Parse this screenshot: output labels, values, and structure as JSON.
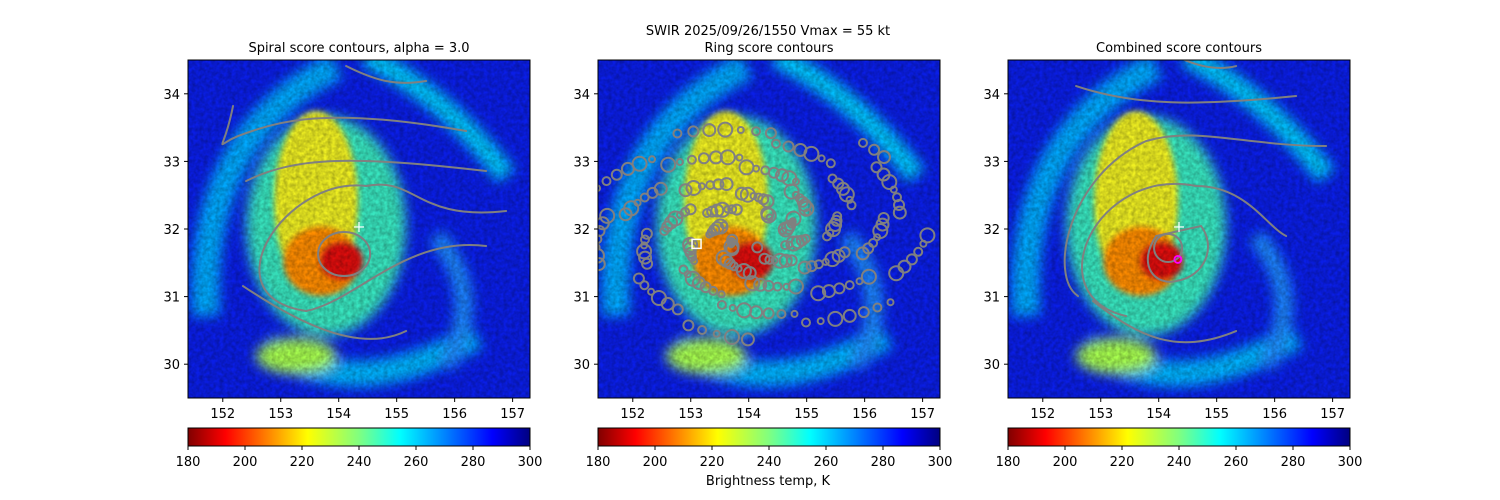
{
  "suptitle": "SWIR  2025/09/26/1550    Vmax = 55 kt",
  "colorbar_label": "Brightness temp, K",
  "colormap": "jet_r",
  "chart_data": [
    {
      "type": "heatmap",
      "title": "Spiral score contours, alpha =  3.0",
      "xlim": [
        151.4,
        157.3
      ],
      "ylim": [
        29.5,
        34.5
      ],
      "xticks": [
        152,
        153,
        154,
        155,
        156,
        157
      ],
      "yticks": [
        30,
        31,
        32,
        33,
        34
      ],
      "colorbar": {
        "range": [
          180,
          300
        ],
        "ticks": [
          180,
          200,
          220,
          240,
          260,
          280,
          300
        ]
      },
      "markers": [
        {
          "type": "plus",
          "lon": 154.35,
          "lat": 32.03,
          "color": "#ffffff"
        }
      ],
      "contour_color": "#808080"
    },
    {
      "type": "heatmap",
      "title": "Ring score contours",
      "xlim": [
        151.4,
        157.3
      ],
      "ylim": [
        29.5,
        34.5
      ],
      "xticks": [
        152,
        153,
        154,
        155,
        156,
        157
      ],
      "yticks": [
        30,
        31,
        32,
        33,
        34
      ],
      "colorbar": {
        "range": [
          180,
          300
        ],
        "ticks": [
          180,
          200,
          220,
          240,
          260,
          280,
          300
        ]
      },
      "markers": [
        {
          "type": "square",
          "lon": 153.1,
          "lat": 31.78,
          "color": "#ffffff"
        }
      ],
      "contour_color": "#808080"
    },
    {
      "type": "heatmap",
      "title": "Combined score contours",
      "xlim": [
        151.4,
        157.3
      ],
      "ylim": [
        29.5,
        34.5
      ],
      "xticks": [
        152,
        153,
        154,
        155,
        156,
        157
      ],
      "yticks": [
        30,
        31,
        32,
        33,
        34
      ],
      "colorbar": {
        "range": [
          180,
          300
        ],
        "ticks": [
          180,
          200,
          220,
          240,
          260,
          280,
          300
        ]
      },
      "markers": [
        {
          "type": "plus",
          "lon": 154.35,
          "lat": 32.03,
          "color": "#ffffff"
        },
        {
          "type": "circle",
          "lon": 154.33,
          "lat": 31.55,
          "color": "#ff00ff"
        }
      ],
      "contour_color": "#808080"
    }
  ]
}
